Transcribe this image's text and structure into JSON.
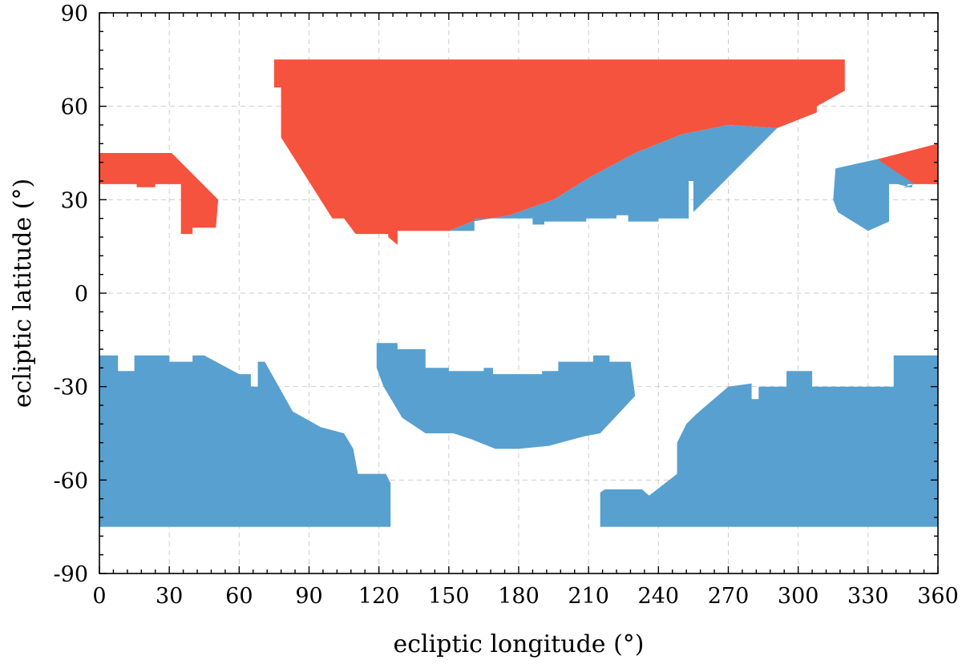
{
  "chart_data": {
    "type": "area",
    "xlabel": "ecliptic longitude (°)",
    "ylabel": "ecliptic latitude (°)",
    "xlim": [
      0,
      360
    ],
    "ylim": [
      -90,
      90
    ],
    "xticks": [
      0,
      30,
      60,
      90,
      120,
      150,
      180,
      210,
      240,
      270,
      300,
      330,
      360
    ],
    "yticks": [
      -90,
      -60,
      -30,
      0,
      30,
      60,
      90
    ],
    "xtick_labels": [
      "0",
      "30",
      "60",
      "90",
      "120",
      "150",
      "180",
      "210",
      "240",
      "270",
      "300",
      "330",
      "360"
    ],
    "ytick_labels": [
      "-90",
      "-60",
      "-30",
      "0",
      "30",
      "60",
      "90"
    ],
    "grid": true,
    "colors": {
      "red": "#f5533d",
      "blue": "#58a0cf"
    },
    "regions": [
      {
        "color": "red",
        "points": [
          [
            0,
            48
          ],
          [
            0,
            35
          ],
          [
            16,
            35
          ],
          [
            16,
            34
          ],
          [
            24,
            34
          ],
          [
            24,
            35
          ],
          [
            35,
            35
          ],
          [
            35,
            19
          ],
          [
            40,
            19
          ],
          [
            40,
            21
          ],
          [
            50,
            21
          ],
          [
            51,
            30
          ],
          [
            31,
            45
          ],
          [
            0,
            45
          ]
        ]
      },
      {
        "color": "red",
        "points": [
          [
            75,
            75
          ],
          [
            320,
            75
          ],
          [
            320,
            65
          ],
          [
            308,
            60
          ],
          [
            308,
            58
          ],
          [
            291,
            53
          ],
          [
            270,
            54
          ],
          [
            250,
            51
          ],
          [
            230,
            45
          ],
          [
            210,
            37
          ],
          [
            195,
            30
          ],
          [
            176,
            25
          ],
          [
            160,
            23
          ],
          [
            150,
            20
          ],
          [
            128,
            20
          ],
          [
            128,
            15.5
          ],
          [
            124,
            18
          ],
          [
            124,
            19
          ],
          [
            110,
            19
          ],
          [
            105,
            24
          ],
          [
            100,
            24
          ],
          [
            78,
            50
          ],
          [
            78,
            66
          ],
          [
            75,
            66
          ]
        ]
      },
      {
        "color": "red",
        "points": [
          [
            334,
            43
          ],
          [
            360,
            48
          ],
          [
            360,
            35
          ],
          [
            350,
            35
          ],
          [
            345,
            37
          ]
        ]
      },
      {
        "color": "blue",
        "points": [
          [
            150,
            20
          ],
          [
            160,
            23
          ],
          [
            176,
            25
          ],
          [
            195,
            30
          ],
          [
            210,
            37
          ],
          [
            230,
            45
          ],
          [
            250,
            51
          ],
          [
            270,
            54
          ],
          [
            291,
            53
          ],
          [
            255,
            26
          ],
          [
            255,
            36
          ],
          [
            253,
            36
          ],
          [
            253,
            24
          ],
          [
            240,
            24
          ],
          [
            240,
            23
          ],
          [
            227,
            23
          ],
          [
            227,
            25
          ],
          [
            222,
            25
          ],
          [
            222,
            24
          ],
          [
            209,
            24
          ],
          [
            209,
            23
          ],
          [
            191,
            23
          ],
          [
            191,
            22
          ],
          [
            186,
            22
          ],
          [
            186,
            24
          ],
          [
            161,
            24
          ],
          [
            161,
            20
          ]
        ]
      },
      {
        "color": "blue",
        "points": [
          [
            316,
            40
          ],
          [
            334,
            43
          ],
          [
            345,
            37
          ],
          [
            350,
            35
          ],
          [
            345,
            34
          ],
          [
            345,
            34
          ],
          [
            349,
            34
          ],
          [
            349,
            35
          ],
          [
            348,
            35
          ],
          [
            348,
            35
          ],
          [
            348,
            34
          ],
          [
            348,
            34
          ],
          [
            348,
            35
          ],
          [
            348,
            35
          ],
          [
            349,
            35
          ],
          [
            349,
            35
          ],
          [
            347,
            35
          ],
          [
            347,
            34
          ],
          [
            348,
            34
          ]
        ]
      },
      {
        "color": "blue",
        "points": [
          [
            316,
            40
          ],
          [
            334,
            43
          ],
          [
            350,
            35
          ],
          [
            339,
            35
          ],
          [
            339,
            23
          ],
          [
            330,
            20
          ],
          [
            317,
            26
          ],
          [
            315,
            30
          ]
        ]
      },
      {
        "color": "blue",
        "points": [
          [
            0,
            -20
          ],
          [
            8,
            -20
          ],
          [
            8,
            -25
          ],
          [
            15,
            -25
          ],
          [
            15,
            -20
          ],
          [
            30,
            -20
          ],
          [
            30,
            -22
          ],
          [
            40,
            -22
          ],
          [
            40,
            -20
          ],
          [
            45,
            -20
          ],
          [
            60,
            -26
          ],
          [
            65,
            -26
          ],
          [
            65,
            -30
          ],
          [
            68,
            -30
          ],
          [
            68,
            -22
          ],
          [
            71,
            -22
          ],
          [
            83,
            -38
          ],
          [
            95,
            -43
          ],
          [
            105,
            -45
          ],
          [
            109,
            -50
          ],
          [
            111,
            -58
          ],
          [
            123,
            -58
          ],
          [
            125,
            -61
          ],
          [
            125,
            -75
          ],
          [
            0,
            -75
          ]
        ]
      },
      {
        "color": "blue",
        "points": [
          [
            119,
            -16
          ],
          [
            128,
            -16
          ],
          [
            128,
            -18
          ],
          [
            140,
            -18
          ],
          [
            140,
            -24
          ],
          [
            150,
            -24
          ],
          [
            150,
            -25
          ],
          [
            165,
            -25
          ],
          [
            165,
            -24
          ],
          [
            169,
            -24
          ],
          [
            169,
            -26
          ],
          [
            190,
            -26
          ],
          [
            190,
            -25
          ],
          [
            197,
            -25
          ],
          [
            197,
            -22
          ],
          [
            204,
            -22
          ],
          [
            212,
            -22
          ],
          [
            212,
            -20
          ],
          [
            219,
            -20
          ],
          [
            219,
            -22
          ],
          [
            228,
            -22
          ],
          [
            230,
            -33
          ],
          [
            215,
            -45
          ],
          [
            208,
            -46
          ],
          [
            203,
            -47
          ],
          [
            193,
            -49
          ],
          [
            180,
            -50
          ],
          [
            170,
            -50
          ],
          [
            160,
            -47
          ],
          [
            152,
            -45
          ],
          [
            140,
            -45
          ],
          [
            130,
            -40
          ],
          [
            122,
            -30
          ],
          [
            119,
            -24
          ]
        ]
      },
      {
        "color": "blue",
        "points": [
          [
            215,
            -64
          ],
          [
            217,
            -63
          ],
          [
            233,
            -63
          ],
          [
            236,
            -65
          ],
          [
            248,
            -58
          ],
          [
            248,
            -48
          ],
          [
            252,
            -42
          ],
          [
            256,
            -39
          ],
          [
            270,
            -30
          ],
          [
            280,
            -29
          ],
          [
            280,
            -34
          ],
          [
            283,
            -34
          ],
          [
            283,
            -30
          ],
          [
            292,
            -30
          ],
          [
            292,
            -34
          ],
          [
            295,
            -34
          ],
          [
            285,
            -34
          ],
          [
            286,
            -30
          ],
          [
            285,
            -30
          ],
          [
            285,
            -30
          ],
          [
            295,
            -30
          ],
          [
            295,
            -25
          ],
          [
            306,
            -25
          ],
          [
            306,
            -30
          ],
          [
            341,
            -30
          ],
          [
            341,
            -20
          ],
          [
            360,
            -20
          ],
          [
            360,
            -75
          ],
          [
            215,
            -75
          ]
        ]
      }
    ]
  }
}
